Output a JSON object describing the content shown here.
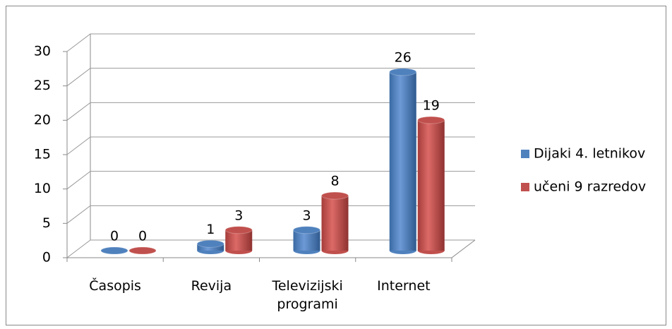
{
  "chart_data": {
    "type": "bar3d",
    "categories": [
      "Časopis",
      "Revija",
      "Televizijski programi",
      "Internet"
    ],
    "series": [
      {
        "name": "Dijaki 4. letnikov",
        "color": "#4f81bd",
        "values": [
          0,
          1,
          3,
          26
        ]
      },
      {
        "name": "učeni 9 razredov",
        "color": "#c0504d",
        "values": [
          0,
          3,
          8,
          19
        ]
      }
    ],
    "ylim": [
      0,
      30
    ],
    "yticks": [
      0,
      5,
      10,
      15,
      20,
      25,
      30
    ],
    "grid": true,
    "legend": "right"
  }
}
